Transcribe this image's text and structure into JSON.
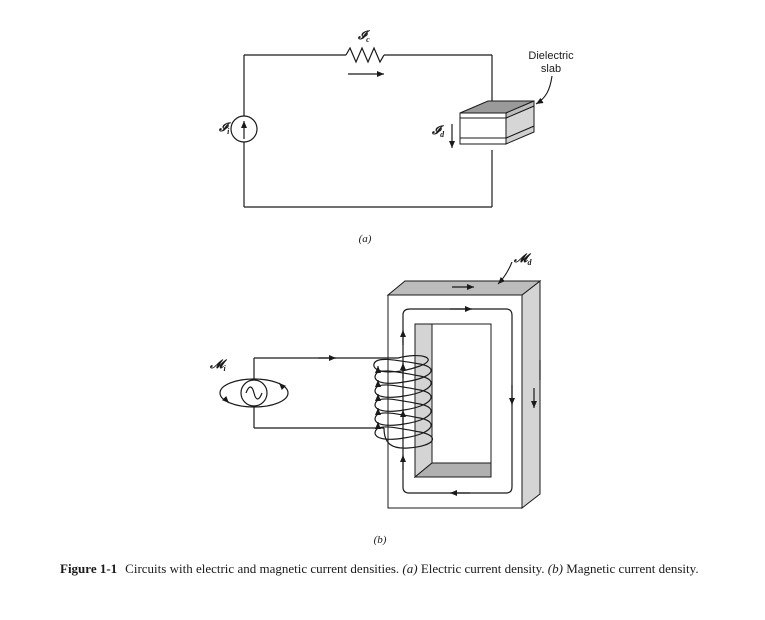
{
  "labels": {
    "ic": {
      "sym": "𝓘",
      "sub": "c"
    },
    "ii": {
      "sym": "𝓘",
      "sub": "i"
    },
    "id": {
      "sym": "𝓘",
      "sub": "d"
    },
    "md": {
      "sym": "𝓜",
      "sub": "d"
    },
    "mi": {
      "sym": "𝓜",
      "sub": "i"
    },
    "dielectric_line1": "Dielectric",
    "dielectric_line2": "slab",
    "part_a": "(a)",
    "part_b": "(b)"
  },
  "caption": {
    "figure_number": "Figure 1-1",
    "text_1": "Circuits with electric and magnetic current densities. ",
    "part_a": "(a)",
    "text_2": " Electric current density. ",
    "part_b": "(b)",
    "text_3": " Magnetic current density."
  }
}
